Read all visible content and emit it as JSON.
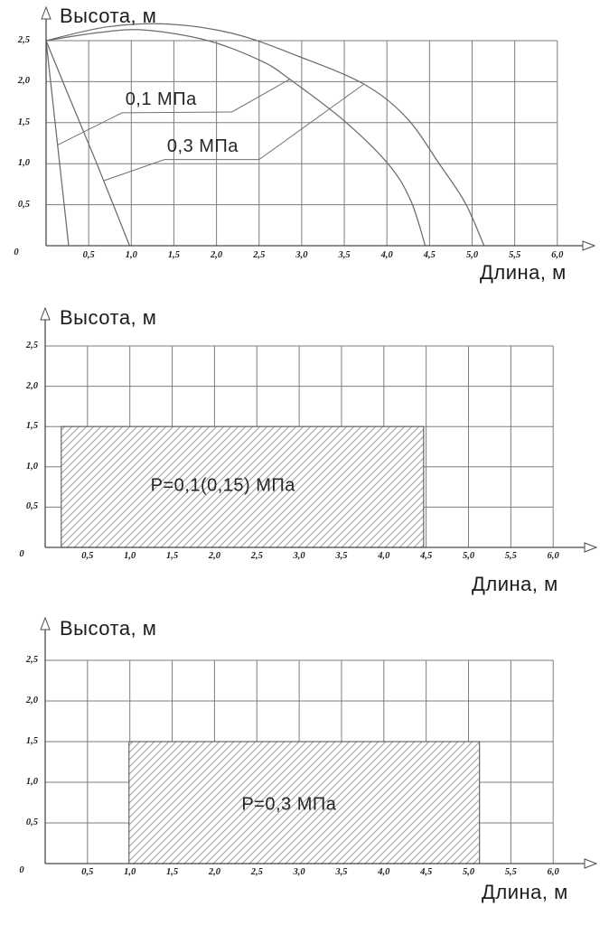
{
  "page": {
    "background": "#ffffff"
  },
  "colors": {
    "grid": "#7d7d7d",
    "axis": "#4a4a4a",
    "curve": "#6b6b6b",
    "leader": "#707070",
    "hatch": "#9c9c9c",
    "region_border": "#5a5a5a",
    "text": "#1b1b1b"
  },
  "chart_data": [
    {
      "type": "line",
      "title": "Высота, м",
      "xlabel": "Длина, м",
      "origin_label": "0",
      "xlim": [
        0,
        6.0
      ],
      "ylim": [
        0,
        2.5
      ],
      "grid": true,
      "x_ticks": [
        0.5,
        1.0,
        1.5,
        2.0,
        2.5,
        3.0,
        3.5,
        4.0,
        4.5,
        5.0,
        5.5,
        6.0
      ],
      "x_tick_labels": [
        "0,5",
        "1,0",
        "1,5",
        "2,0",
        "2,5",
        "3,0",
        "3,5",
        "4,0",
        "4,5",
        "5,0",
        "5,5",
        "6,0"
      ],
      "y_ticks": [
        0.5,
        1.0,
        1.5,
        2.0,
        2.5
      ],
      "y_tick_labels": [
        "0,5",
        "1,0",
        "1,5",
        "2,0",
        "2,5"
      ],
      "series": [
        {
          "id": "p01-front-line",
          "points": [
            [
              0,
              2.5
            ],
            [
              0.14,
              1.18
            ],
            [
              0.265,
              0
            ]
          ]
        },
        {
          "id": "p03-front-line",
          "points": [
            [
              0,
              2.5
            ],
            [
              0.24,
              1.89
            ],
            [
              0.58,
              1.04
            ],
            [
              0.98,
              0
            ]
          ]
        },
        {
          "id": "p01-arc",
          "points": [
            [
              0,
              2.5
            ],
            [
              0.63,
              2.6
            ],
            [
              1.16,
              2.63
            ],
            [
              1.9,
              2.5
            ],
            [
              2.53,
              2.25
            ],
            [
              2.86,
              2.03
            ],
            [
              3.49,
              1.53
            ],
            [
              4.02,
              0.99
            ],
            [
              4.28,
              0.55
            ],
            [
              4.45,
              0
            ]
          ]
        },
        {
          "id": "p03-arc",
          "points": [
            [
              0,
              2.5
            ],
            [
              0.73,
              2.67
            ],
            [
              1.47,
              2.7
            ],
            [
              2.22,
              2.58
            ],
            [
              2.96,
              2.31
            ],
            [
              3.73,
              1.97
            ],
            [
              4.23,
              1.56
            ],
            [
              4.62,
              0.99
            ],
            [
              4.92,
              0.52
            ],
            [
              5.14,
              0
            ]
          ]
        }
      ],
      "annotations": [
        {
          "label": "0,1 МПа",
          "label_pos": [
            0.93,
            1.9
          ],
          "leader": [
            [
              0.14,
              1.23
            ],
            [
              0.89,
              1.62
            ],
            [
              2.18,
              1.63
            ],
            [
              2.86,
              2.03
            ]
          ]
        },
        {
          "label": "0,3 МПа",
          "label_pos": [
            1.42,
            1.33
          ],
          "leader": [
            [
              0.67,
              0.79
            ],
            [
              1.39,
              1.05
            ],
            [
              2.5,
              1.05
            ],
            [
              3.73,
              1.97
            ]
          ]
        }
      ]
    },
    {
      "type": "area",
      "title": "Высота, м",
      "xlabel": "Длина, м",
      "origin_label": "0",
      "xlim": [
        0,
        6.0
      ],
      "ylim": [
        0,
        2.5
      ],
      "grid": true,
      "x_ticks": [
        0.5,
        1.0,
        1.5,
        2.0,
        2.5,
        3.0,
        3.5,
        4.0,
        4.5,
        5.0,
        5.5,
        6.0
      ],
      "x_tick_labels": [
        "0,5",
        "1,0",
        "1,5",
        "2,0",
        "2,5",
        "3,0",
        "3,5",
        "4,0",
        "4,5",
        "5,0",
        "5,5",
        "6,0"
      ],
      "y_ticks": [
        0.5,
        1.0,
        1.5,
        2.0,
        2.5
      ],
      "y_tick_labels": [
        "0,5",
        "1,0",
        "1,5",
        "2,0",
        "2,5"
      ],
      "region": {
        "x0": 0.19,
        "x1": 4.47,
        "y0": 0,
        "y1": 1.5,
        "label": "P=0,1(0,15) МПа",
        "label_pos": [
          2.1,
          0.76
        ]
      }
    },
    {
      "type": "area",
      "title": "Высота, м",
      "xlabel": "Длина, м",
      "origin_label": "0",
      "xlim": [
        0,
        6.0
      ],
      "ylim": [
        0,
        2.5
      ],
      "grid": true,
      "x_ticks": [
        0.5,
        1.0,
        1.5,
        2.0,
        2.5,
        3.0,
        3.5,
        4.0,
        4.5,
        5.0,
        5.5,
        6.0
      ],
      "x_tick_labels": [
        "0,5",
        "1,0",
        "1,5",
        "2,0",
        "2,5",
        "3,0",
        "3,5",
        "4,0",
        "4,5",
        "5,0",
        "5,5",
        "6,0"
      ],
      "y_ticks": [
        0.5,
        1.0,
        1.5,
        2.0,
        2.5
      ],
      "y_tick_labels": [
        "0,5",
        "1,0",
        "1,5",
        "2,0",
        "2,5"
      ],
      "region": {
        "x0": 0.99,
        "x1": 5.13,
        "y0": 0,
        "y1": 1.5,
        "label": "P=0,3 МПа",
        "label_pos": [
          2.88,
          0.72
        ]
      }
    }
  ]
}
